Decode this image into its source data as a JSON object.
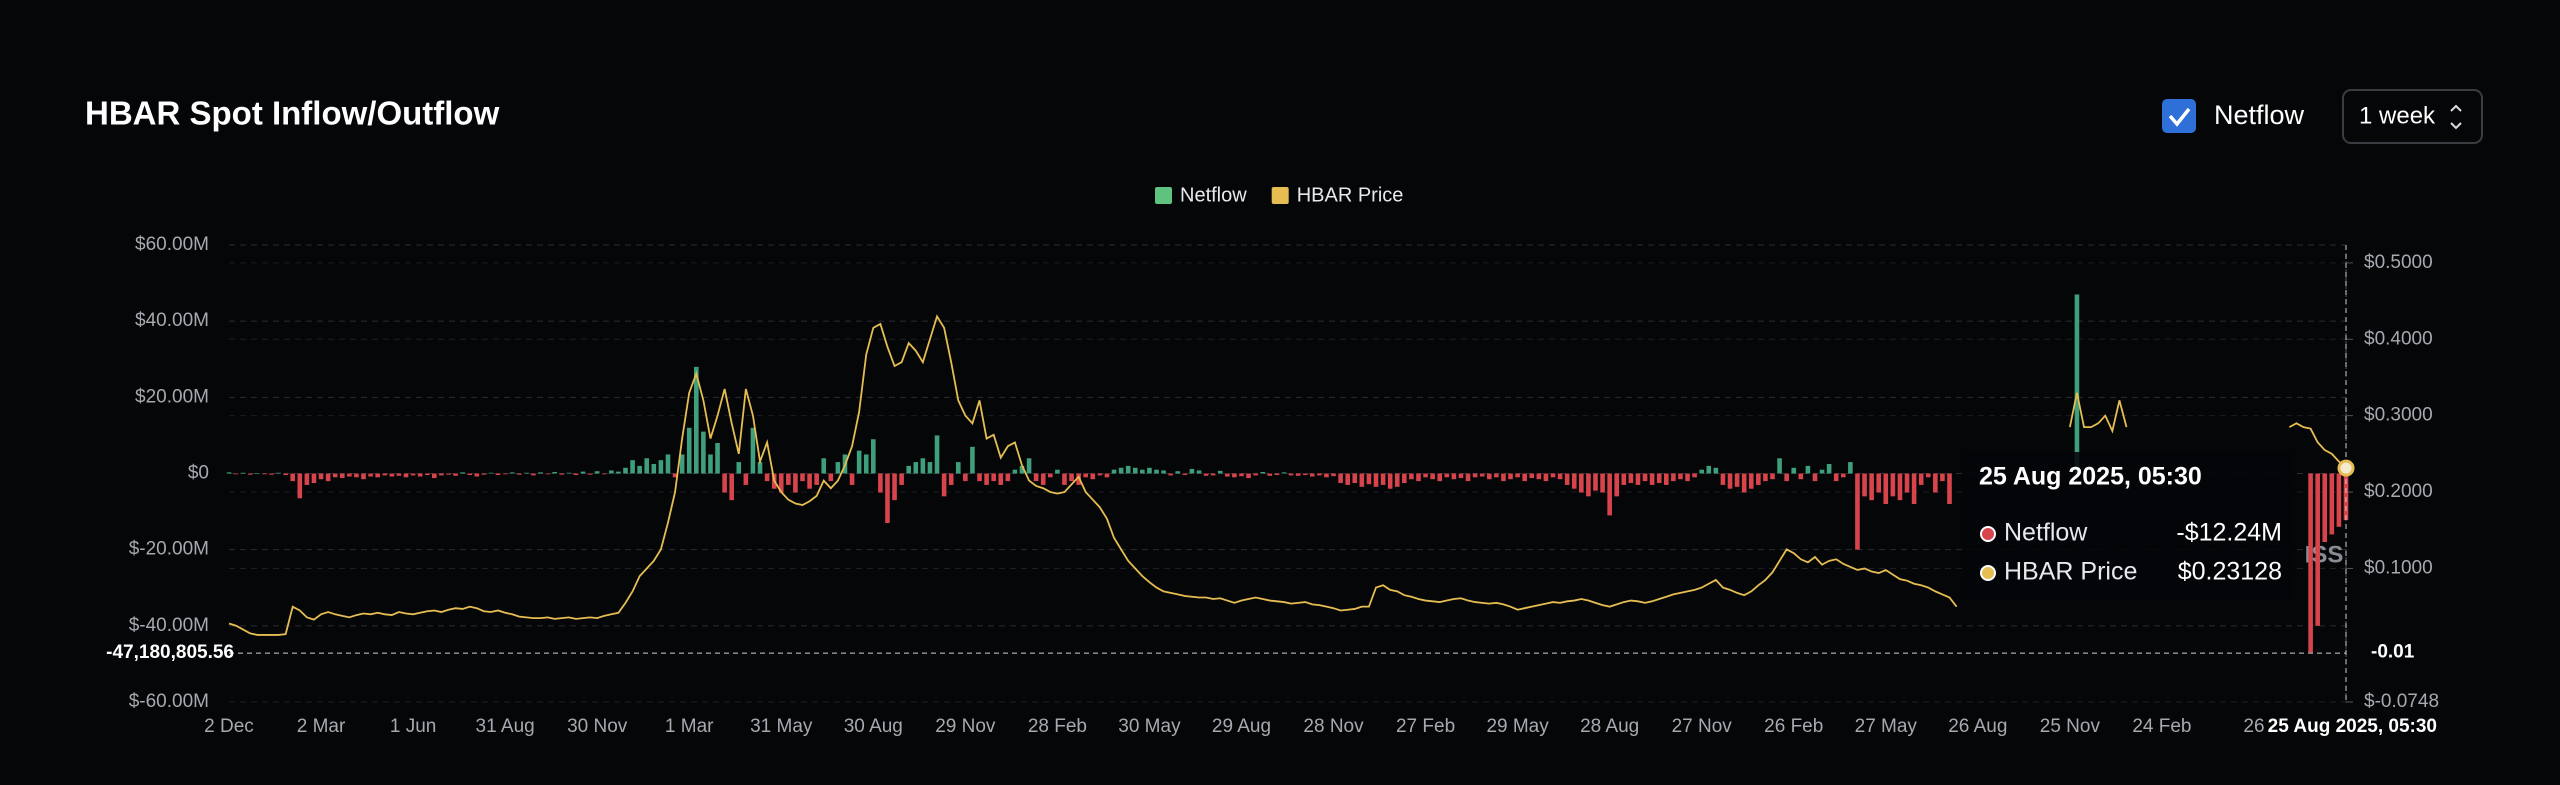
{
  "header": {
    "title": "HBAR Spot Inflow/Outflow",
    "checkbox_label": "Netflow",
    "period": "1 week"
  },
  "chart_data": {
    "type": "bar",
    "categories": [
      "2 Dec",
      null,
      null,
      null,
      null,
      null,
      null,
      null,
      null,
      null,
      null,
      null,
      null,
      "2 Mar",
      null,
      null,
      null,
      null,
      null,
      null,
      null,
      null,
      null,
      null,
      null,
      null,
      "1 Jun",
      null,
      null,
      null,
      null,
      null,
      null,
      null,
      null,
      null,
      null,
      null,
      null,
      "31 Aug",
      null,
      null,
      null,
      null,
      null,
      null,
      null,
      null,
      null,
      null,
      null,
      null,
      "30 Nov",
      null,
      null,
      null,
      null,
      null,
      null,
      null,
      null,
      null,
      null,
      null,
      null,
      "1 Mar",
      null,
      null,
      null,
      null,
      null,
      null,
      null,
      null,
      null,
      null,
      null,
      null,
      "31 May",
      null,
      null,
      null,
      null,
      null,
      null,
      null,
      null,
      null,
      null,
      null,
      null,
      "30 Aug",
      null,
      null,
      null,
      null,
      null,
      null,
      null,
      null,
      null,
      null,
      null,
      null,
      "29 Nov",
      null,
      null,
      null,
      null,
      null,
      null,
      null,
      null,
      null,
      null,
      null,
      null,
      "28 Feb",
      null,
      null,
      null,
      null,
      null,
      null,
      null,
      null,
      null,
      null,
      null,
      null,
      "30 May",
      null,
      null,
      null,
      null,
      null,
      null,
      null,
      null,
      null,
      null,
      null,
      null,
      "29 Aug",
      null,
      null,
      null,
      null,
      null,
      null,
      null,
      null,
      null,
      null,
      null,
      null,
      "28 Nov",
      null,
      null,
      null,
      null,
      null,
      null,
      null,
      null,
      null,
      null,
      null,
      null,
      "27 Feb",
      null,
      null,
      null,
      null,
      null,
      null,
      null,
      null,
      null,
      null,
      null,
      null,
      "29 May",
      null,
      null,
      null,
      null,
      null,
      null,
      null,
      null,
      null,
      null,
      null,
      null,
      "28 Aug",
      null,
      null,
      null,
      null,
      null,
      null,
      null,
      null,
      null,
      null,
      null,
      null,
      "27 Nov",
      null,
      null,
      null,
      null,
      null,
      null,
      null,
      null,
      null,
      null,
      null,
      null,
      "26 Feb",
      null,
      null,
      null,
      null,
      null,
      null,
      null,
      null,
      null,
      null,
      null,
      null,
      "27 May",
      null,
      null,
      null,
      null,
      null,
      null,
      null,
      null,
      null,
      null,
      null,
      null,
      "26 Aug",
      null,
      null,
      null,
      null,
      null,
      null,
      null,
      null,
      null,
      null,
      null,
      null,
      "25 Nov",
      null,
      null,
      null,
      null,
      null,
      null,
      null,
      null,
      null,
      null,
      null,
      null,
      "24 Feb",
      null,
      null,
      null,
      null,
      null,
      null,
      null,
      null,
      null,
      null,
      null,
      null,
      "26",
      null,
      null,
      null,
      null,
      null,
      null,
      null,
      null,
      null,
      null,
      null,
      null,
      null
    ],
    "series": [
      {
        "name": "Netflow",
        "type": "bar",
        "axis": "y",
        "color": "#3f9f7c",
        "negative_color": "#d8444b",
        "legend_color": "#5fc27e",
        "values": [
          0.3,
          -0.2,
          0.2,
          -0.3,
          0.1,
          -0.2,
          -0.3,
          0.2,
          -0.4,
          -2,
          -6.5,
          -3,
          -2.5,
          -1.5,
          -2,
          -1,
          -1.2,
          -0.8,
          -1,
          -1.5,
          -0.8,
          -1,
          -0.5,
          -0.8,
          -0.6,
          -1,
          -0.5,
          -0.8,
          -0.4,
          -1.2,
          -0.5,
          -0.3,
          -0.6,
          0.3,
          -0.4,
          -0.8,
          -0.3,
          0.2,
          -0.4,
          -0.2,
          0.3,
          -0.3,
          0.2,
          -0.5,
          0.3,
          -0.2,
          0.4,
          -0.3,
          0.2,
          -0.4,
          0.5,
          -0.3,
          0.6,
          -0.2,
          0.8,
          0.5,
          1.5,
          3.5,
          2,
          4,
          2.5,
          3.5,
          5,
          -1,
          5,
          12,
          28,
          11,
          5,
          8,
          -5,
          -7,
          3,
          -3,
          12,
          3,
          -2,
          -4,
          -5,
          -3,
          -5,
          -2,
          -4,
          -3,
          4,
          -2,
          3,
          5,
          -3,
          6,
          5,
          9,
          -5,
          -13,
          -7,
          -3,
          2,
          3,
          4,
          3,
          10,
          -6,
          -3,
          3,
          -2,
          7,
          -2,
          -3,
          -2,
          -3,
          -2,
          1,
          2,
          4,
          -2,
          -3,
          -1,
          1,
          -3,
          -2,
          -3,
          -1,
          -1.5,
          -0.5,
          -1,
          1,
          1.5,
          2,
          1.5,
          1,
          1.5,
          1,
          0.8,
          -0.5,
          0.6,
          -0.4,
          1.2,
          0.8,
          -0.6,
          -0.5,
          0.7,
          -0.8,
          -1,
          -0.7,
          -1.2,
          -0.5,
          0.4,
          -0.6,
          -0.4,
          0.3,
          -0.5,
          -0.6,
          -0.4,
          -0.8,
          -0.5,
          -1,
          -0.7,
          -2.5,
          -3,
          -2.5,
          -3.5,
          -2.8,
          -3.5,
          -3,
          -4,
          -3.5,
          -2.5,
          -1.5,
          -2,
          -1,
          -1.5,
          -2,
          -1,
          -1.5,
          -1.2,
          -2,
          -1,
          -0.8,
          -1.5,
          -1,
          -2,
          -1.5,
          -1,
          -2,
          -1.2,
          -1.5,
          -2,
          -1,
          -1.5,
          -3,
          -4,
          -5,
          -6,
          -4.5,
          -5,
          -11,
          -6,
          -3,
          -2.5,
          -3,
          -2,
          -3,
          -2.5,
          -3,
          -2,
          -1.5,
          -2,
          -1,
          1,
          2,
          1.5,
          -3,
          -4,
          -3.5,
          -5,
          -4,
          -3,
          -2,
          -1.5,
          4,
          -2,
          1.5,
          -1.5,
          2,
          -2,
          1,
          2.5,
          -2,
          -1,
          3,
          -20,
          -6,
          -7,
          -5,
          -8,
          -6,
          -7,
          -5,
          -8,
          -3,
          -1,
          -5,
          -2,
          -8,
          null,
          null,
          null,
          null,
          null,
          null,
          null,
          null,
          null,
          null,
          null,
          null,
          null,
          null,
          null,
          null,
          null,
          47,
          null,
          null,
          null,
          null,
          null,
          null,
          null,
          null,
          null,
          null,
          null,
          null,
          null,
          null,
          null,
          null,
          null,
          null,
          null,
          null,
          null,
          null,
          null,
          null,
          null,
          null,
          null,
          null,
          null,
          null,
          null,
          null,
          -47,
          -40,
          -18,
          -16,
          -14,
          -12.24
        ]
      },
      {
        "name": "HBAR Price",
        "type": "line",
        "axis": "y2",
        "color": "#e6bd52",
        "values": [
          0.028,
          0.025,
          0.02,
          0.015,
          0.013,
          0.013,
          0.013,
          0.013,
          0.014,
          0.05,
          0.045,
          0.036,
          0.033,
          0.04,
          0.043,
          0.04,
          0.038,
          0.036,
          0.039,
          0.041,
          0.04,
          0.042,
          0.04,
          0.039,
          0.043,
          0.041,
          0.04,
          0.042,
          0.044,
          0.045,
          0.043,
          0.046,
          0.048,
          0.047,
          0.05,
          0.048,
          0.044,
          0.043,
          0.045,
          0.042,
          0.04,
          0.037,
          0.036,
          0.035,
          0.035,
          0.036,
          0.034,
          0.035,
          0.036,
          0.034,
          0.035,
          0.036,
          0.035,
          0.038,
          0.04,
          0.042,
          0.055,
          0.07,
          0.09,
          0.1,
          0.11,
          0.125,
          0.16,
          0.2,
          0.27,
          0.33,
          0.355,
          0.32,
          0.27,
          0.3,
          0.335,
          0.29,
          0.25,
          0.335,
          0.3,
          0.24,
          0.265,
          0.215,
          0.2,
          0.19,
          0.185,
          0.183,
          0.188,
          0.195,
          0.215,
          0.205,
          0.215,
          0.235,
          0.26,
          0.305,
          0.38,
          0.415,
          0.42,
          0.39,
          0.365,
          0.37,
          0.395,
          0.385,
          0.37,
          0.4,
          0.43,
          0.415,
          0.37,
          0.32,
          0.3,
          0.29,
          0.32,
          0.27,
          0.275,
          0.245,
          0.26,
          0.265,
          0.235,
          0.215,
          0.208,
          0.205,
          0.2,
          0.198,
          0.2,
          0.21,
          0.22,
          0.2,
          0.19,
          0.18,
          0.165,
          0.14,
          0.125,
          0.11,
          0.1,
          0.09,
          0.082,
          0.075,
          0.07,
          0.068,
          0.066,
          0.064,
          0.063,
          0.062,
          0.062,
          0.06,
          0.061,
          0.058,
          0.055,
          0.058,
          0.06,
          0.062,
          0.06,
          0.058,
          0.057,
          0.056,
          0.054,
          0.055,
          0.056,
          0.053,
          0.052,
          0.05,
          0.048,
          0.045,
          0.046,
          0.047,
          0.05,
          0.05,
          0.075,
          0.078,
          0.072,
          0.07,
          0.065,
          0.063,
          0.06,
          0.058,
          0.057,
          0.056,
          0.058,
          0.06,
          0.061,
          0.058,
          0.056,
          0.055,
          0.054,
          0.055,
          0.053,
          0.05,
          0.046,
          0.048,
          0.05,
          0.052,
          0.054,
          0.056,
          0.055,
          0.057,
          0.058,
          0.06,
          0.058,
          0.055,
          0.052,
          0.05,
          0.053,
          0.056,
          0.058,
          0.057,
          0.055,
          0.057,
          0.06,
          0.063,
          0.066,
          0.068,
          0.07,
          0.072,
          0.075,
          0.08,
          0.085,
          0.075,
          0.072,
          0.068,
          0.065,
          0.07,
          0.078,
          0.085,
          0.095,
          0.11,
          0.125,
          0.12,
          0.112,
          0.108,
          0.115,
          0.105,
          0.11,
          0.112,
          0.106,
          0.102,
          0.098,
          0.1,
          0.096,
          0.094,
          0.098,
          0.092,
          0.086,
          0.084,
          0.08,
          0.078,
          0.075,
          0.07,
          0.066,
          0.062,
          0.05,
          null,
          null,
          null,
          null,
          null,
          null,
          null,
          null,
          null,
          null,
          null,
          null,
          null,
          null,
          null,
          0.285,
          0.33,
          0.285,
          0.285,
          0.29,
          0.3,
          0.28,
          0.32,
          0.285,
          null,
          null,
          null,
          null,
          null,
          null,
          null,
          null,
          null,
          null,
          null,
          null,
          null,
          null,
          null,
          null,
          null,
          null,
          null,
          null,
          null,
          null,
          0.285,
          0.29,
          0.285,
          0.283,
          0.265,
          0.255,
          0.25,
          0.24,
          0.23128
        ]
      }
    ],
    "ylim": [
      -60,
      60
    ],
    "yticks": [
      {
        "value": -60,
        "label": "$-60.00M"
      },
      {
        "value": -40,
        "label": "$-40.00M"
      },
      {
        "value": -20,
        "label": "$-20.00M"
      },
      {
        "value": 0,
        "label": "$0"
      },
      {
        "value": 20,
        "label": "$20.00M"
      },
      {
        "value": 40,
        "label": "$40.00M"
      },
      {
        "value": 60,
        "label": "$60.00M"
      }
    ],
    "y2lim": [
      -0.0748,
      0.5234
    ],
    "y2ticks": [
      {
        "value": -0.0748,
        "label": "$-0.0748"
      },
      {
        "value": 0.1,
        "label": "$0.1000"
      },
      {
        "value": 0.2,
        "label": "$0.2000"
      },
      {
        "value": 0.3,
        "label": "$0.3000"
      },
      {
        "value": 0.4,
        "label": "$0.4000"
      },
      {
        "value": 0.5,
        "label": "$0.5000"
      }
    ],
    "grid": true,
    "legend": "top",
    "watermark": "ISS",
    "crosshair": {
      "y": {
        "value": -47.18080556,
        "label": "-47,180,805.56"
      },
      "y2": -0.01,
      "x_label": "25 Aug 2025, 05:30"
    },
    "tooltip": {
      "title": "25 Aug 2025, 05:30",
      "value_labels": [
        "-$12.24M",
        "$0.23128"
      ]
    }
  }
}
